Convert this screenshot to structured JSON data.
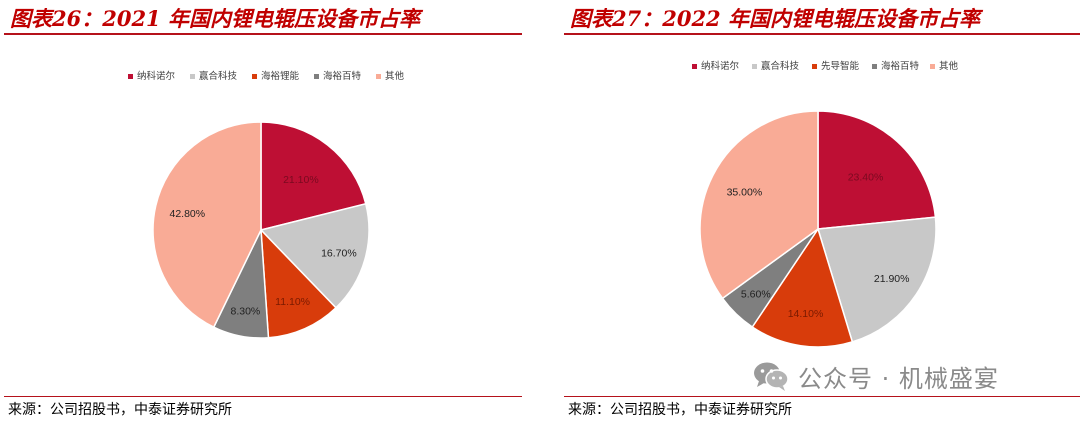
{
  "left_panel": {
    "title": "图表26：2021 年国内锂电辊压设备市占率",
    "source": "来源：公司招股书，中泰证券研究所"
  },
  "right_panel": {
    "title": "图表27：2022 年国内锂电辊压设备市占率",
    "source": "来源：公司招股书，中泰证券研究所"
  },
  "watermark": {
    "text": "公众号 · 机械盛宴",
    "icon": "wechat-icon"
  },
  "colors": {
    "accent_red": "#b5121b",
    "title_red": "#c00000",
    "slice_1": "#be0f34",
    "slice_2": "#c8c8c8",
    "slice_3": "#d83c0b",
    "slice_4": "#7f7f7f",
    "slice_5": "#f9ab96"
  },
  "chart_data": [
    {
      "type": "pie",
      "categories": [
        "纳科诺尔",
        "赢合科技",
        "海裕锂能",
        "海裕百特",
        "其他"
      ],
      "values": [
        21.1,
        16.7,
        11.1,
        8.3,
        42.8
      ],
      "labels": [
        "21.10%",
        "16.70%",
        "11.10%",
        "8.30%",
        "42.80%"
      ],
      "legend_position": "top"
    },
    {
      "type": "pie",
      "categories": [
        "纳科诺尔",
        "赢合科技",
        "先导智能",
        "海裕百特",
        "其他"
      ],
      "values": [
        23.4,
        21.9,
        14.1,
        5.6,
        35.0
      ],
      "labels": [
        "23.40%",
        "21.90%",
        "14.10%",
        "5.60%",
        "35.00%"
      ],
      "legend_position": "top"
    }
  ]
}
